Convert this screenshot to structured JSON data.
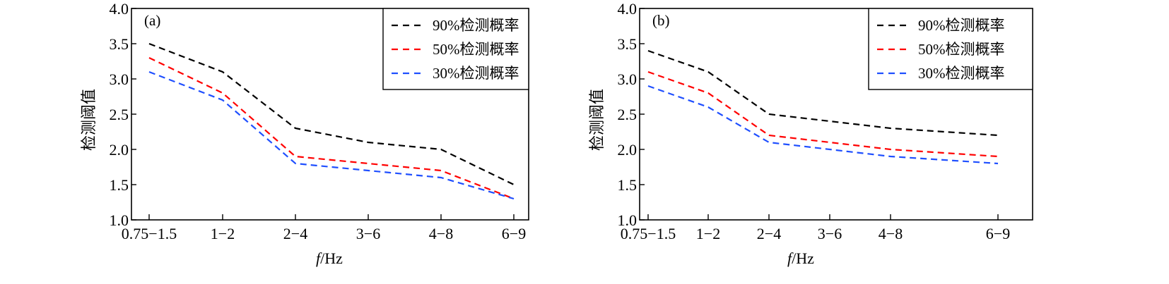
{
  "chart_data": [
    {
      "type": "line",
      "panel_label": "(a)",
      "title": "",
      "xlabel_italic": "f",
      "xlabel_rest": "/Hz",
      "ylabel": "检测阈值",
      "ylim": [
        1.0,
        4.0
      ],
      "yticks": [
        "1.0",
        "1.5",
        "2.0",
        "2.5",
        "3.0",
        "3.5",
        "4.0"
      ],
      "categories": [
        "0.75−1.5",
        "1−2",
        "2−4",
        "3−6",
        "4−8",
        "6−9"
      ],
      "legend_position": "top-right",
      "grid": false,
      "series": [
        {
          "name": "90%检测概率",
          "color": "#000000",
          "values": [
            3.5,
            3.1,
            2.3,
            2.1,
            2.0,
            1.5
          ]
        },
        {
          "name": "50%检测概率",
          "color": "#ff0000",
          "values": [
            3.3,
            2.8,
            1.9,
            1.8,
            1.7,
            1.3
          ]
        },
        {
          "name": "30%检测概率",
          "color": "#1f4fff",
          "values": [
            3.1,
            2.7,
            1.8,
            1.7,
            1.6,
            1.3
          ]
        }
      ]
    },
    {
      "type": "line",
      "panel_label": "(b)",
      "title": "",
      "xlabel_italic": "f",
      "xlabel_rest": "/Hz",
      "ylabel": "检测阈值",
      "ylim": [
        1.0,
        4.0
      ],
      "yticks": [
        "1.0",
        "1.5",
        "2.0",
        "2.5",
        "3.0",
        "3.5",
        "4.0"
      ],
      "categories": [
        "0.75−1.5",
        "1−2",
        "2−4",
        "3−6",
        "4−8",
        "6−9"
      ],
      "legend_position": "top-right",
      "grid": false,
      "series": [
        {
          "name": "90%检测概率",
          "color": "#000000",
          "values": [
            3.4,
            3.1,
            2.5,
            2.4,
            2.3,
            2.2
          ]
        },
        {
          "name": "50%检测概率",
          "color": "#ff0000",
          "values": [
            3.1,
            2.8,
            2.2,
            2.1,
            2.0,
            1.9
          ]
        },
        {
          "name": "30%检测概率",
          "color": "#1f4fff",
          "values": [
            2.9,
            2.6,
            2.1,
            2.0,
            1.9,
            1.8
          ]
        }
      ]
    }
  ]
}
